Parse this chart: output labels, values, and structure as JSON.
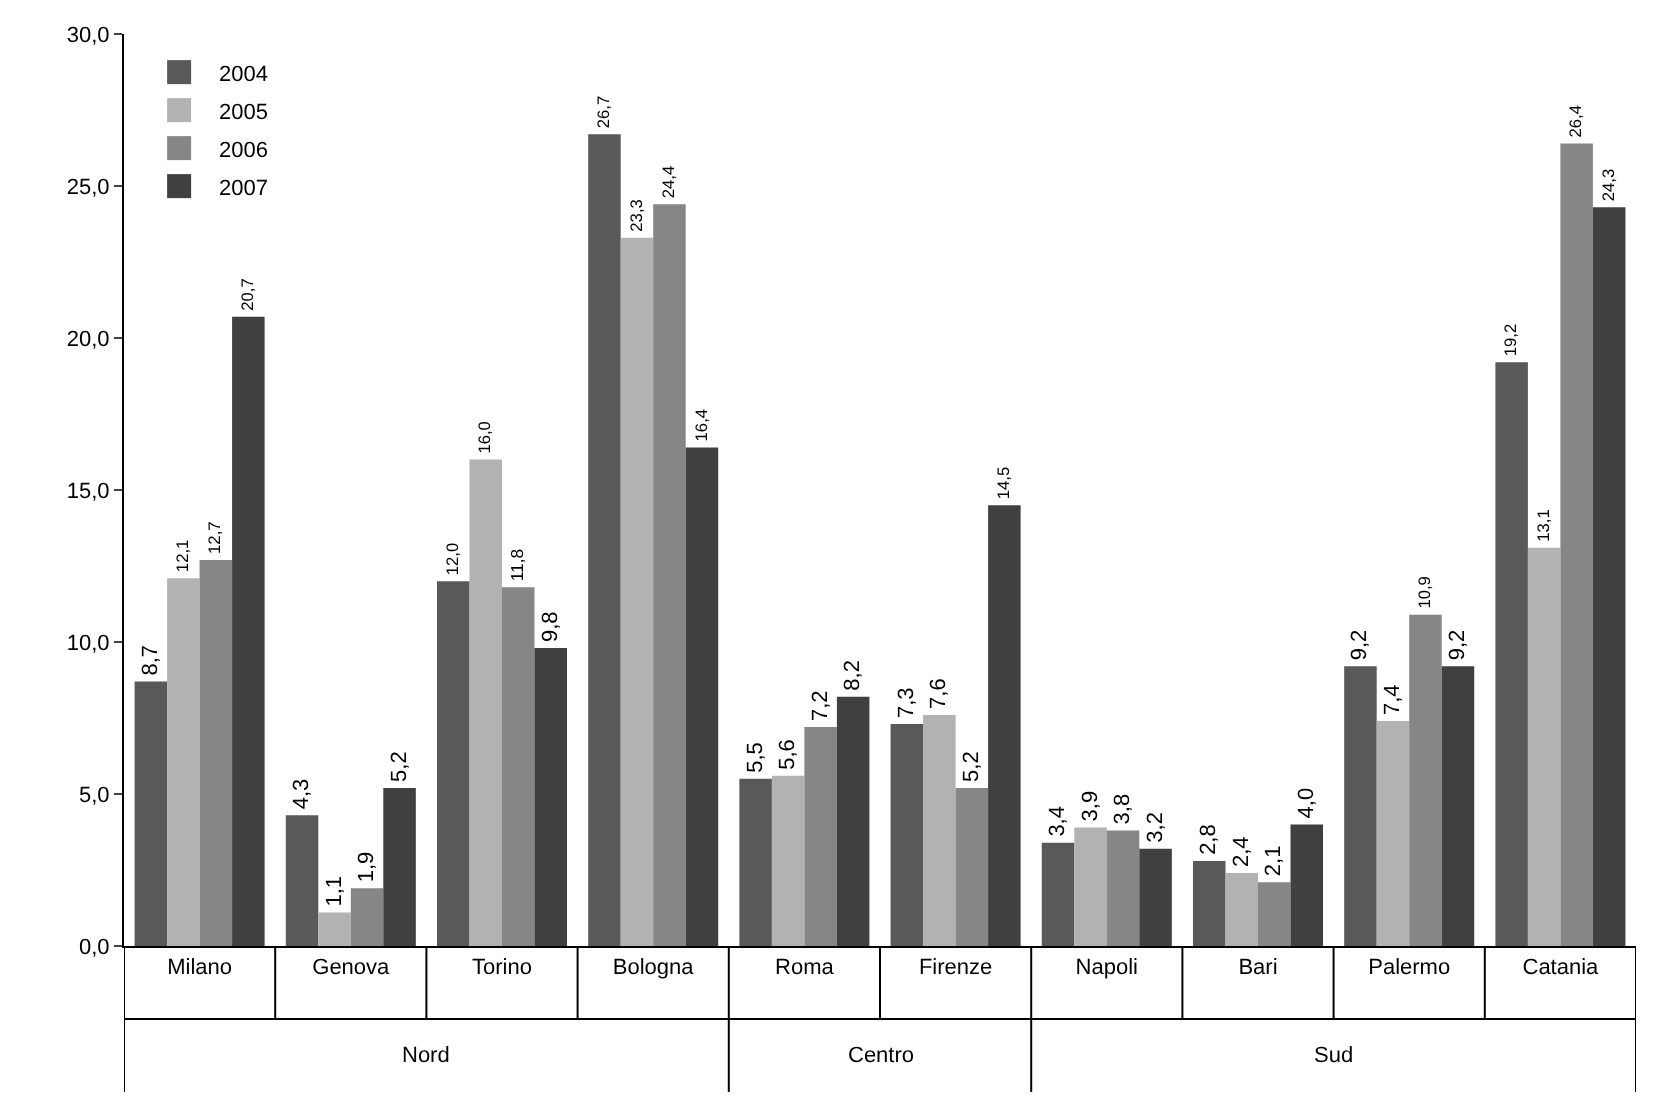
{
  "chart_data": {
    "type": "bar",
    "categories": [
      "Milano",
      "Genova",
      "Torino",
      "Bologna",
      "Roma",
      "Firenze",
      "Napoli",
      "Bari",
      "Palermo",
      "Catania"
    ],
    "series": [
      {
        "name": "2004",
        "color": "#595959",
        "values": [
          8.7,
          4.3,
          12.0,
          26.7,
          5.5,
          7.3,
          3.4,
          2.8,
          9.2,
          19.2
        ],
        "value_labels": [
          "8,7",
          "4,3",
          "12,0",
          "26,7",
          "5,5",
          "7,3",
          "3,4",
          "2,8",
          "9,2",
          "19,2"
        ]
      },
      {
        "name": "2005",
        "color": "#b2b2b2",
        "values": [
          12.1,
          1.1,
          16.0,
          23.3,
          5.6,
          7.6,
          3.9,
          2.4,
          7.4,
          13.1
        ],
        "value_labels": [
          "12,1",
          "1,1",
          "16,0",
          "23,3",
          "5,6",
          "7,6",
          "3,9",
          "2,4",
          "7,4",
          "13,1"
        ]
      },
      {
        "name": "2006",
        "color": "#868686",
        "values": [
          12.7,
          1.9,
          11.8,
          24.4,
          7.2,
          5.2,
          3.8,
          2.1,
          10.9,
          26.4
        ],
        "value_labels": [
          "12,7",
          "1,9",
          "11,8",
          "24,4",
          "7,2",
          "5,2",
          "3,8",
          "2,1",
          "10,9",
          "26,4"
        ]
      },
      {
        "name": "2007",
        "color": "#404040",
        "values": [
          20.7,
          5.2,
          9.8,
          16.4,
          8.2,
          14.5,
          3.2,
          4.0,
          9.2,
          24.3
        ],
        "value_labels": [
          "20,7",
          "5,2",
          "9,8",
          "16,4",
          "8,2",
          "14,5",
          "3,2",
          "4,0",
          "9,2",
          "24,3"
        ]
      }
    ],
    "annotations": [
      "Nord",
      "Centro",
      "Sud"
    ],
    "ylim": [
      0,
      30
    ],
    "yticks": [
      {
        "value": 0,
        "label": "0,0"
      },
      {
        "value": 5,
        "label": "5,0"
      },
      {
        "value": 10,
        "label": "10,0"
      },
      {
        "value": 15,
        "label": "15,0"
      },
      {
        "value": 20,
        "label": "20,0"
      },
      {
        "value": 25,
        "label": "25,0"
      },
      {
        "value": 30,
        "label": "30,0"
      }
    ],
    "grid": false,
    "legend": "top left"
  }
}
